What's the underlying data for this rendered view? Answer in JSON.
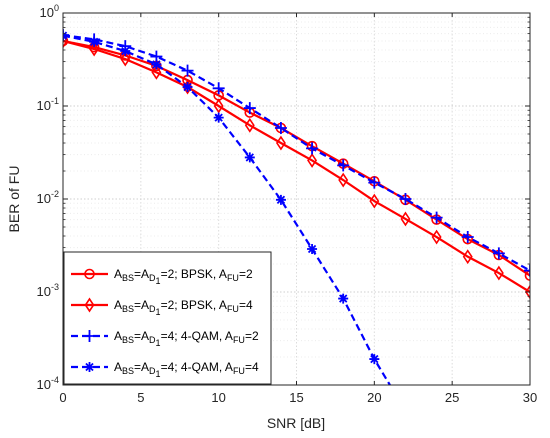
{
  "chart_data": {
    "type": "line",
    "xlabel": "SNR [dB]",
    "ylabel": "BER of FU",
    "xlim": [
      0,
      30
    ],
    "ylim": [
      0.0001,
      1
    ],
    "yscale": "log",
    "grid": true,
    "legend_position": "bottom-left",
    "x_ticks": [
      "0",
      "5",
      "10",
      "15",
      "20",
      "25",
      "30"
    ],
    "y_ticks": [
      {
        "base": "10",
        "exp": "-4",
        "value": 0.0001
      },
      {
        "base": "10",
        "exp": "-3",
        "value": 0.001
      },
      {
        "base": "10",
        "exp": "-2",
        "value": 0.01
      },
      {
        "base": "10",
        "exp": "-1",
        "value": 0.1
      },
      {
        "base": "10",
        "exp": "0",
        "value": 1
      }
    ],
    "series": [
      {
        "legend": {
          "p1": "A",
          "s1": "BS",
          "p2": "=A",
          "s2": "D",
          "s3": "1",
          "p3": "=2; BPSK, A",
          "s4": "FU",
          "p4": "=2"
        },
        "color": "#ff0000",
        "dash": "solid",
        "marker": "circle",
        "x": [
          0,
          2,
          4,
          6,
          8,
          10,
          12,
          14,
          16,
          18,
          20,
          22,
          24,
          26,
          28,
          30
        ],
        "y": [
          0.5,
          0.43,
          0.35,
          0.27,
          0.19,
          0.13,
          0.085,
          0.058,
          0.037,
          0.024,
          0.0155,
          0.0098,
          0.006,
          0.0037,
          0.0025,
          0.0015
        ]
      },
      {
        "legend": {
          "p1": "A",
          "s1": "BS",
          "p2": "=A",
          "s2": "D",
          "s3": "1",
          "p3": "=2; BPSK, A",
          "s4": "FU",
          "p4": "=4"
        },
        "color": "#ff0000",
        "dash": "solid",
        "marker": "diamond",
        "x": [
          0,
          2,
          4,
          6,
          8,
          10,
          12,
          14,
          16,
          18,
          20,
          22,
          24,
          26,
          28,
          30
        ],
        "y": [
          0.5,
          0.41,
          0.32,
          0.23,
          0.16,
          0.1,
          0.062,
          0.04,
          0.026,
          0.016,
          0.0095,
          0.0061,
          0.0039,
          0.0024,
          0.0016,
          0.001
        ]
      },
      {
        "legend": {
          "p1": "A",
          "s1": "BS",
          "p2": "=A",
          "s2": "D",
          "s3": "1",
          "p3": "=4; 4-QAM, A",
          "s4": "FU",
          "p4": "=2"
        },
        "color": "#0000ff",
        "dash": "dashed",
        "marker": "plus",
        "x": [
          0,
          2,
          4,
          6,
          8,
          10,
          12,
          14,
          16,
          18,
          20,
          22,
          24,
          26,
          28,
          30
        ],
        "y": [
          0.58,
          0.52,
          0.44,
          0.34,
          0.24,
          0.155,
          0.095,
          0.058,
          0.035,
          0.023,
          0.015,
          0.01,
          0.0063,
          0.0039,
          0.0026,
          0.0017
        ]
      },
      {
        "legend": {
          "p1": "A",
          "s1": "BS",
          "p2": "=A",
          "s2": "D",
          "s3": "1",
          "p3": "=4; 4-QAM, A",
          "s4": "FU",
          "p4": "=4"
        },
        "color": "#0000ff",
        "dash": "dashed",
        "marker": "asterisk",
        "x": [
          0,
          2,
          4,
          6,
          8,
          10,
          12,
          14,
          16,
          18,
          20,
          21
        ],
        "y": [
          0.57,
          0.49,
          0.39,
          0.28,
          0.16,
          0.075,
          0.028,
          0.0098,
          0.0029,
          0.00085,
          0.00019,
          0.0001
        ]
      }
    ]
  }
}
